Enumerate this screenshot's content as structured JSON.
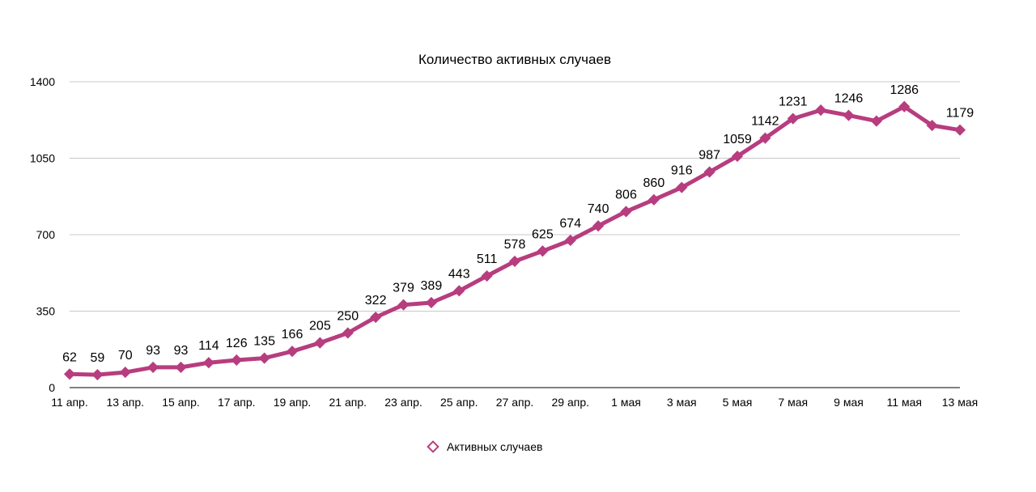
{
  "chart_data": {
    "type": "line",
    "title": "Количество активных случаев",
    "xlabel": "",
    "ylabel": "",
    "ylim": [
      0,
      1400
    ],
    "yticks": [
      0,
      350,
      700,
      1050,
      1400
    ],
    "grid": true,
    "legend_position": "bottom",
    "color": "#b73d7f",
    "x": [
      "11 апр.",
      "12 апр.",
      "13 апр.",
      "14 апр.",
      "15 апр.",
      "16 апр.",
      "17 апр.",
      "18 апр.",
      "19 апр.",
      "20 апр.",
      "21 апр.",
      "22 апр.",
      "23 апр.",
      "24 апр.",
      "25 апр.",
      "26 апр.",
      "27 апр.",
      "28 апр.",
      "29 апр.",
      "30 апр.",
      "1 мая",
      "2 мая",
      "3 мая",
      "4 мая",
      "5 мая",
      "6 мая",
      "7 мая",
      "8 мая",
      "9 мая",
      "10 мая",
      "11 мая",
      "12 мая",
      "13 мая"
    ],
    "x_tick_labels": [
      "11 апр.",
      "13 апр.",
      "15 апр.",
      "17 апр.",
      "19 апр.",
      "21 апр.",
      "23 апр.",
      "25 апр.",
      "27 апр.",
      "29 апр.",
      "1 мая",
      "3 мая",
      "5 мая",
      "7 мая",
      "9 мая",
      "11 мая",
      "13 мая"
    ],
    "series": [
      {
        "name": "Активных случаев",
        "values": [
          62,
          59,
          70,
          93,
          93,
          114,
          126,
          135,
          166,
          205,
          250,
          322,
          379,
          389,
          443,
          511,
          578,
          625,
          674,
          740,
          806,
          860,
          916,
          987,
          1059,
          1142,
          1231,
          1270,
          1246,
          1220,
          1286,
          1200,
          1179
        ],
        "labeled": [
          true,
          true,
          true,
          true,
          true,
          true,
          true,
          true,
          true,
          true,
          true,
          true,
          true,
          true,
          true,
          true,
          true,
          true,
          true,
          true,
          true,
          true,
          true,
          true,
          true,
          true,
          true,
          false,
          true,
          false,
          true,
          false,
          true
        ]
      }
    ]
  }
}
